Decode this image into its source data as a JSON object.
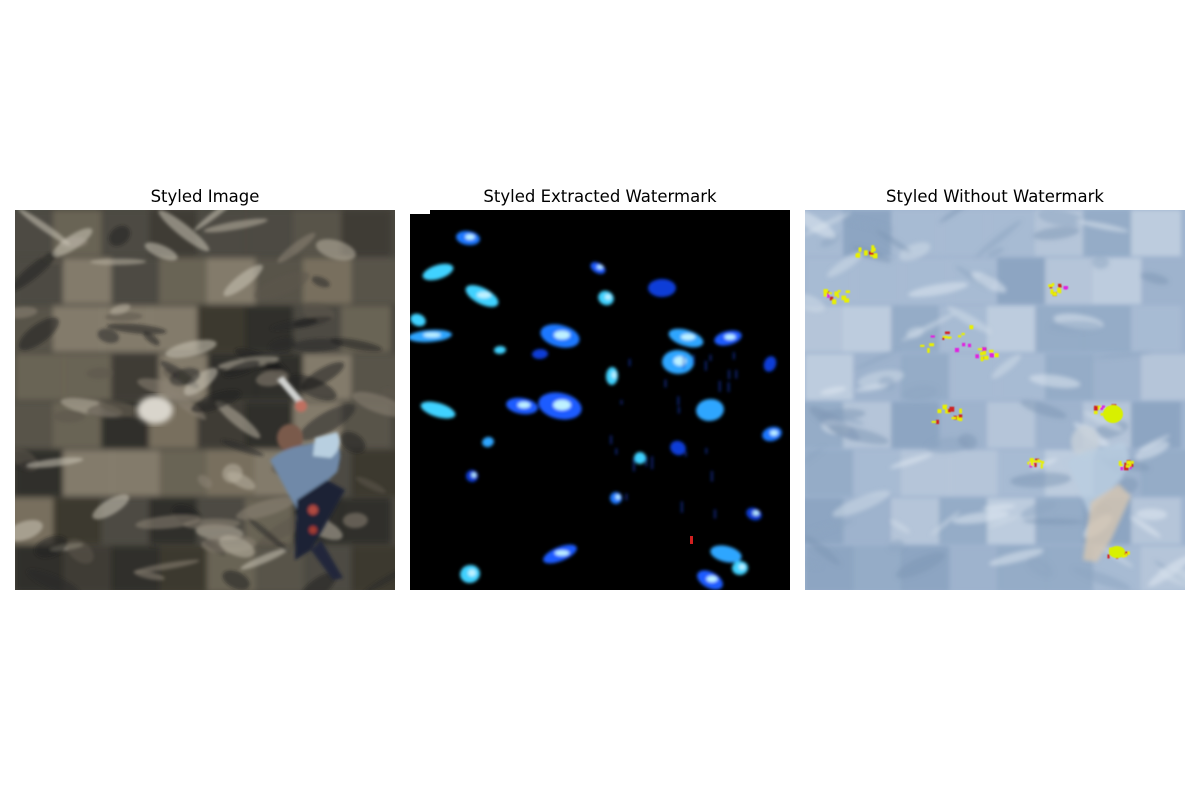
{
  "panels": [
    {
      "title": "Styled Image",
      "base_color": "#4a473f"
    },
    {
      "title": "Styled Extracted Watermark",
      "base_color": "#000000"
    },
    {
      "title": "Styled Without Watermark",
      "base_color": "#9fb4cf"
    }
  ]
}
